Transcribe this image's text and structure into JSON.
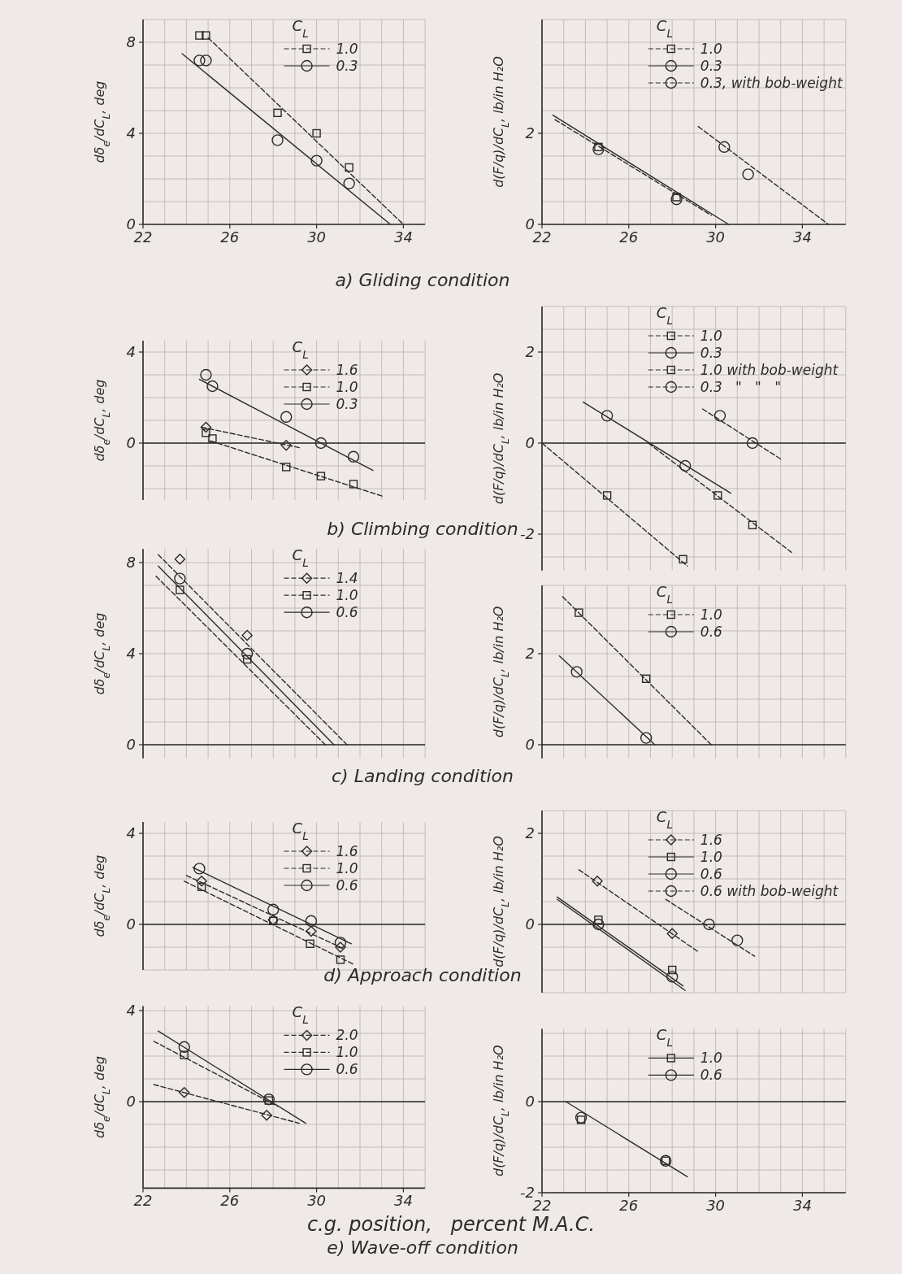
{
  "chart_data": [
    {
      "type": "scatter",
      "title": "a) Gliding condition",
      "ylabel": "dδ$_{e}$/dC$_{L}$, deg",
      "legend_title": "C$_{L}$",
      "legend": "top",
      "grid": true,
      "xlim": [
        22,
        35
      ],
      "ylim": [
        0,
        9
      ],
      "xticks": [
        22,
        {
          "value": 23,
          "label": null
        },
        {
          "value": 24,
          "label": null
        },
        {
          "value": 25,
          "label": null
        },
        26,
        {
          "value": 27,
          "label": null
        },
        {
          "value": 28,
          "label": null
        },
        {
          "value": 29,
          "label": null
        },
        30,
        {
          "value": 31,
          "label": null
        },
        {
          "value": 32,
          "label": null
        },
        {
          "value": 33,
          "label": null
        },
        34,
        {
          "value": 35,
          "label": null
        }
      ],
      "yticks": [
        0,
        {
          "value": 1,
          "label": null
        },
        {
          "value": 2,
          "label": null
        },
        {
          "value": 3,
          "label": null
        },
        4,
        {
          "value": 5,
          "label": null
        },
        {
          "value": 6,
          "label": null
        },
        {
          "value": 7,
          "label": null
        },
        8,
        {
          "value": 9,
          "label": null
        }
      ],
      "series": [
        {
          "name": "1.0",
          "type": "scatter",
          "marker": "square",
          "color": "#2b2b2b",
          "x": [
            24.6,
            24.9,
            28.2,
            30.0,
            31.5
          ],
          "values": [
            8.3,
            8.3,
            4.9,
            4.0,
            2.5
          ]
        },
        {
          "type": "line",
          "line_style": "dashed",
          "color": "#2b2b2b",
          "x": [
            25.0,
            34.0
          ],
          "values": [
            8.2,
            0
          ]
        },
        {
          "name": "0.3",
          "type": "scatter",
          "marker": "circle",
          "color": "#2b2b2b",
          "x": [
            24.6,
            24.9,
            28.2,
            30.0,
            31.5
          ],
          "values": [
            7.2,
            7.2,
            3.7,
            2.8,
            1.8
          ]
        },
        {
          "type": "line",
          "line_style": "solid",
          "color": "#2b2b2b",
          "x": [
            23.8,
            33.4
          ],
          "values": [
            7.5,
            0
          ]
        }
      ]
    },
    {
      "type": "scatter",
      "ylabel": "d(F/q)/dC$_{L}$, lb/in H₂O",
      "legend_title": "C$_{L}$",
      "legend": "top right",
      "grid": true,
      "xlim": [
        22,
        36
      ],
      "ylim": [
        0,
        4.5
      ],
      "xticks": [
        22,
        {
          "value": 23,
          "label": null
        },
        {
          "value": 24,
          "label": null
        },
        {
          "value": 25,
          "label": null
        },
        26,
        {
          "value": 27,
          "label": null
        },
        {
          "value": 28,
          "label": null
        },
        {
          "value": 29,
          "label": null
        },
        30,
        {
          "value": 31,
          "label": null
        },
        {
          "value": 32,
          "label": null
        },
        {
          "value": 33,
          "label": null
        },
        34,
        {
          "value": 35,
          "label": null
        },
        {
          "value": 36,
          "label": null
        }
      ],
      "yticks": [
        0,
        {
          "value": 0.5,
          "label": null
        },
        {
          "value": 1,
          "label": null
        },
        {
          "value": 1.5,
          "label": null
        },
        2,
        {
          "value": 2.5,
          "label": null
        },
        {
          "value": 3,
          "label": null
        },
        {
          "value": 3.5,
          "label": null
        },
        {
          "value": 4,
          "label": null
        },
        {
          "value": 4.5,
          "label": null
        }
      ],
      "series": [
        {
          "name": "1.0",
          "type": "scatter",
          "marker": "square",
          "color": "#2b2b2b",
          "x": [
            24.6,
            28.2
          ],
          "values": [
            1.7,
            0.6
          ]
        },
        {
          "type": "line",
          "line_style": "dashed",
          "color": "#2b2b2b",
          "x": [
            22.6,
            29.8
          ],
          "values": [
            2.3,
            0.2
          ]
        },
        {
          "name": "0.3",
          "type": "scatter",
          "marker": "circle",
          "color": "#2b2b2b",
          "x": [
            24.6,
            28.2
          ],
          "values": [
            1.65,
            0.55
          ]
        },
        {
          "type": "line",
          "line_style": "solid",
          "color": "#2b2b2b",
          "x": [
            22.5,
            30.6
          ],
          "values": [
            2.4,
            0
          ]
        },
        {
          "name": "0.3, with bob-weight",
          "type": "scatter",
          "marker": "circle",
          "color": "#2b2b2b",
          "x": [
            30.4,
            31.5
          ],
          "values": [
            1.7,
            1.1
          ]
        },
        {
          "type": "line",
          "line_style": "dashed",
          "color": "#2b2b2b",
          "x": [
            29.2,
            35.2
          ],
          "values": [
            2.15,
            0
          ]
        }
      ]
    },
    {
      "type": "scatter",
      "title": "b) Climbing condition",
      "ylabel": "dδ$_{e}$/dC$_{L}$, deg",
      "legend_title": "C$_{L}$",
      "legend": "top",
      "grid": true,
      "tick_labels": "y",
      "xlim": [
        22,
        35
      ],
      "ylim": [
        -2.5,
        4.5
      ],
      "xticks": [
        22,
        {
          "value": 23,
          "label": null
        },
        {
          "value": 24,
          "label": null
        },
        {
          "value": 25,
          "label": null
        },
        26,
        {
          "value": 27,
          "label": null
        },
        {
          "value": 28,
          "label": null
        },
        {
          "value": 29,
          "label": null
        },
        30,
        {
          "value": 31,
          "label": null
        },
        {
          "value": 32,
          "label": null
        },
        {
          "value": 33,
          "label": null
        },
        34,
        {
          "value": 35,
          "label": null
        }
      ],
      "yticks": [
        {
          "value": -2,
          "label": null
        },
        {
          "value": -1,
          "label": null
        },
        0,
        {
          "value": 1,
          "label": null
        },
        {
          "value": 2,
          "label": null
        },
        {
          "value": 3,
          "label": null
        },
        4
      ],
      "ref_lines": [
        {
          "axis": "y",
          "value": 0
        }
      ],
      "series": [
        {
          "name": "1.6",
          "type": "scatter",
          "marker": "diamond",
          "color": "#2b2b2b",
          "x": [
            24.9,
            28.6
          ],
          "values": [
            0.7,
            -0.1
          ]
        },
        {
          "type": "line",
          "line_style": "dashed",
          "color": "#2b2b2b",
          "x": [
            24.7,
            29.2
          ],
          "values": [
            0.7,
            -0.2
          ]
        },
        {
          "name": "1.0",
          "type": "scatter",
          "marker": "square",
          "color": "#2b2b2b",
          "x": [
            24.9,
            25.2,
            28.6,
            30.2,
            31.7
          ],
          "values": [
            0.45,
            0.2,
            -1.05,
            -1.45,
            -1.8
          ]
        },
        {
          "type": "line",
          "line_style": "dashed",
          "color": "#2b2b2b",
          "x": [
            25.1,
            33.1
          ],
          "values": [
            0.1,
            -2.35
          ]
        },
        {
          "name": "0.3",
          "type": "scatter",
          "marker": "circle",
          "color": "#2b2b2b",
          "x": [
            24.9,
            25.2,
            28.6,
            30.2,
            31.7
          ],
          "values": [
            3.0,
            2.5,
            1.15,
            0,
            -0.6
          ]
        },
        {
          "type": "line",
          "line_style": "solid",
          "color": "#2b2b2b",
          "x": [
            24.6,
            32.6
          ],
          "values": [
            2.8,
            -1.2
          ]
        }
      ]
    },
    {
      "type": "scatter",
      "ylabel": "d(F/q)/dC$_{L}$, lb/in H₂O",
      "legend_title": "C$_{L}$",
      "legend": "top right",
      "grid": true,
      "tick_labels": "y",
      "xlim": [
        22,
        36
      ],
      "ylim": [
        -2.8,
        3
      ],
      "xticks": [
        22,
        {
          "value": 23,
          "label": null
        },
        {
          "value": 24,
          "label": null
        },
        {
          "value": 25,
          "label": null
        },
        26,
        {
          "value": 27,
          "label": null
        },
        {
          "value": 28,
          "label": null
        },
        {
          "value": 29,
          "label": null
        },
        30,
        {
          "value": 31,
          "label": null
        },
        {
          "value": 32,
          "label": null
        },
        {
          "value": 33,
          "label": null
        },
        34,
        {
          "value": 35,
          "label": null
        },
        {
          "value": 36,
          "label": null
        }
      ],
      "yticks": [
        {
          "value": -2.5,
          "label": null
        },
        -2,
        {
          "value": -1.5,
          "label": null
        },
        {
          "value": -1,
          "label": null
        },
        {
          "value": -0.5,
          "label": null
        },
        0,
        {
          "value": 0.5,
          "label": null
        },
        {
          "value": 1,
          "label": null
        },
        {
          "value": 1.5,
          "label": null
        },
        2,
        {
          "value": 2.5,
          "label": null
        },
        {
          "value": 3,
          "label": null
        }
      ],
      "ref_lines": [
        {
          "axis": "y",
          "value": 0
        }
      ],
      "series": [
        {
          "name": "1.0",
          "type": "scatter",
          "marker": "square",
          "color": "#2b2b2b",
          "x": [
            25.0,
            28.5
          ],
          "values": [
            -1.15,
            -2.55
          ]
        },
        {
          "type": "line",
          "line_style": "dashed",
          "color": "#2b2b2b",
          "x": [
            22.0,
            28.7
          ],
          "values": [
            0,
            -2.7
          ]
        },
        {
          "name": "0.3",
          "type": "scatter",
          "marker": "circle",
          "color": "#2b2b2b",
          "x": [
            25.0,
            28.6
          ],
          "values": [
            0.6,
            -0.5
          ]
        },
        {
          "type": "line",
          "line_style": "solid",
          "color": "#2b2b2b",
          "x": [
            23.9,
            30.7
          ],
          "values": [
            0.9,
            -1.1
          ]
        },
        {
          "name": "1.0 with bob-weight",
          "type": "scatter",
          "marker": "square",
          "color": "#2b2b2b",
          "x": [
            30.1,
            31.7
          ],
          "values": [
            -1.15,
            -1.8
          ]
        },
        {
          "type": "line",
          "line_style": "dashed",
          "color": "#2b2b2b",
          "x": [
            26.9,
            33.5
          ],
          "values": [
            0,
            -2.4
          ]
        },
        {
          "name": "0.3   \"   \"   \"",
          "type": "scatter",
          "marker": "circle",
          "color": "#2b2b2b",
          "x": [
            30.2,
            31.7
          ],
          "values": [
            0.6,
            0
          ]
        },
        {
          "type": "line",
          "line_style": "dashed",
          "color": "#2b2b2b",
          "x": [
            29.4,
            33.0
          ],
          "values": [
            0.75,
            -0.35
          ]
        }
      ]
    },
    {
      "type": "scatter",
      "title": "c) Landing condition",
      "ylabel": "dδ$_{e}$/dC$_{L}$, deg",
      "legend_title": "C$_{L}$",
      "legend": "top",
      "grid": true,
      "tick_labels": "y",
      "xlim": [
        22,
        35
      ],
      "ylim": [
        -0.6,
        8.6
      ],
      "xticks": [
        22,
        {
          "value": 23,
          "label": null
        },
        {
          "value": 24,
          "label": null
        },
        {
          "value": 25,
          "label": null
        },
        26,
        {
          "value": 27,
          "label": null
        },
        {
          "value": 28,
          "label": null
        },
        {
          "value": 29,
          "label": null
        },
        30,
        {
          "value": 31,
          "label": null
        },
        {
          "value": 32,
          "label": null
        },
        {
          "value": 33,
          "label": null
        },
        34,
        {
          "value": 35,
          "label": null
        }
      ],
      "yticks": [
        0,
        {
          "value": 1,
          "label": null
        },
        {
          "value": 2,
          "label": null
        },
        {
          "value": 3,
          "label": null
        },
        4,
        {
          "value": 5,
          "label": null
        },
        {
          "value": 6,
          "label": null
        },
        {
          "value": 7,
          "label": null
        },
        8
      ],
      "ref_lines": [
        {
          "axis": "y",
          "value": 0
        }
      ],
      "series": [
        {
          "name": "1.4",
          "type": "scatter",
          "marker": "diamond",
          "color": "#2b2b2b",
          "x": [
            23.7,
            26.8
          ],
          "values": [
            8.15,
            4.8
          ]
        },
        {
          "type": "line",
          "line_style": "dashed",
          "color": "#2b2b2b",
          "x": [
            22.7,
            31.4
          ],
          "values": [
            8.35,
            0
          ]
        },
        {
          "name": "1.0",
          "type": "scatter",
          "marker": "square",
          "color": "#2b2b2b",
          "x": [
            23.7,
            26.8
          ],
          "values": [
            6.8,
            3.75
          ]
        },
        {
          "type": "line",
          "line_style": "dashed",
          "color": "#2b2b2b",
          "x": [
            22.6,
            30.4
          ],
          "values": [
            7.4,
            0
          ]
        },
        {
          "name": "0.6",
          "type": "scatter",
          "marker": "circle",
          "color": "#2b2b2b",
          "x": [
            23.7,
            26.8
          ],
          "values": [
            7.3,
            4.0
          ]
        },
        {
          "type": "line",
          "line_style": "solid",
          "color": "#2b2b2b",
          "x": [
            22.7,
            30.8
          ],
          "values": [
            7.85,
            0
          ]
        }
      ]
    },
    {
      "type": "scatter",
      "ylabel": "d(F/q)/dC$_{L}$, lb/in H₂O",
      "legend_title": "C$_{L}$",
      "legend": "top right",
      "grid": true,
      "tick_labels": "y",
      "xlim": [
        22,
        36
      ],
      "ylim": [
        -0.3,
        3.5
      ],
      "xticks": [
        22,
        {
          "value": 23,
          "label": null
        },
        {
          "value": 24,
          "label": null
        },
        {
          "value": 25,
          "label": null
        },
        26,
        {
          "value": 27,
          "label": null
        },
        {
          "value": 28,
          "label": null
        },
        {
          "value": 29,
          "label": null
        },
        30,
        {
          "value": 31,
          "label": null
        },
        {
          "value": 32,
          "label": null
        },
        {
          "value": 33,
          "label": null
        },
        34,
        {
          "value": 35,
          "label": null
        },
        {
          "value": 36,
          "label": null
        }
      ],
      "yticks": [
        0,
        {
          "value": 0.5,
          "label": null
        },
        {
          "value": 1,
          "label": null
        },
        {
          "value": 1.5,
          "label": null
        },
        2,
        {
          "value": 2.5,
          "label": null
        },
        {
          "value": 3,
          "label": null
        },
        {
          "value": 3.5,
          "label": null
        }
      ],
      "ref_lines": [
        {
          "axis": "y",
          "value": 0
        }
      ],
      "series": [
        {
          "name": "1.0",
          "type": "scatter",
          "marker": "square",
          "color": "#2b2b2b",
          "x": [
            23.7,
            26.8
          ],
          "values": [
            2.9,
            1.45
          ]
        },
        {
          "type": "line",
          "line_style": "dashed",
          "color": "#2b2b2b",
          "x": [
            22.95,
            29.8
          ],
          "values": [
            3.25,
            0
          ]
        },
        {
          "name": "0.6",
          "type": "scatter",
          "marker": "circle",
          "color": "#2b2b2b",
          "x": [
            23.6,
            26.8
          ],
          "values": [
            1.6,
            0.15
          ]
        },
        {
          "type": "line",
          "line_style": "solid",
          "color": "#2b2b2b",
          "x": [
            22.8,
            27.2
          ],
          "values": [
            1.95,
            0
          ]
        }
      ]
    },
    {
      "type": "scatter",
      "title": "d) Approach condition",
      "ylabel": "dδ$_{e}$/dC$_{L}$, deg",
      "legend_title": "C$_{L}$",
      "legend": "top",
      "grid": true,
      "tick_labels": "y",
      "xlim": [
        22,
        35
      ],
      "ylim": [
        -2,
        4.5
      ],
      "xticks": [
        22,
        {
          "value": 23,
          "label": null
        },
        {
          "value": 24,
          "label": null
        },
        {
          "value": 25,
          "label": null
        },
        26,
        {
          "value": 27,
          "label": null
        },
        {
          "value": 28,
          "label": null
        },
        {
          "value": 29,
          "label": null
        },
        30,
        {
          "value": 31,
          "label": null
        },
        {
          "value": 32,
          "label": null
        },
        {
          "value": 33,
          "label": null
        },
        34,
        {
          "value": 35,
          "label": null
        }
      ],
      "yticks": [
        {
          "value": -2,
          "label": null
        },
        {
          "value": -1,
          "label": null
        },
        0,
        {
          "value": 1,
          "label": null
        },
        {
          "value": 2,
          "label": null
        },
        {
          "value": 3,
          "label": null
        },
        4
      ],
      "ref_lines": [
        {
          "axis": "y",
          "value": 0
        }
      ],
      "series": [
        {
          "name": "1.6",
          "type": "scatter",
          "marker": "diamond",
          "color": "#2b2b2b",
          "x": [
            24.7,
            28.0,
            29.75,
            31.1
          ],
          "values": [
            1.9,
            0.2,
            -0.3,
            -1.0
          ]
        },
        {
          "type": "line",
          "line_style": "dashed",
          "color": "#2b2b2b",
          "x": [
            24.0,
            31.2
          ],
          "values": [
            2.15,
            -1.05
          ]
        },
        {
          "name": "1.0",
          "type": "scatter",
          "marker": "square",
          "color": "#2b2b2b",
          "x": [
            24.7,
            28.0,
            29.7,
            31.1
          ],
          "values": [
            1.65,
            0.15,
            -0.85,
            -1.55
          ]
        },
        {
          "type": "line",
          "line_style": "dashed",
          "color": "#2b2b2b",
          "x": [
            23.9,
            31.7
          ],
          "values": [
            1.9,
            -1.75
          ]
        },
        {
          "name": "0.6",
          "type": "scatter",
          "marker": "circle",
          "color": "#2b2b2b",
          "x": [
            24.6,
            28.0,
            29.75,
            31.1
          ],
          "values": [
            2.45,
            0.65,
            0.15,
            -0.8
          ]
        },
        {
          "type": "line",
          "line_style": "solid",
          "color": "#2b2b2b",
          "x": [
            24.3,
            31.6
          ],
          "values": [
            2.5,
            -0.85
          ]
        }
      ]
    },
    {
      "type": "scatter",
      "ylabel": "d(F/q)/dC$_{L}$, lb/in H₂O",
      "legend_title": "C$_{L}$",
      "legend": "top right",
      "grid": true,
      "tick_labels": "y",
      "xlim": [
        22,
        36
      ],
      "ylim": [
        -1.5,
        2.5
      ],
      "xticks": [
        22,
        {
          "value": 23,
          "label": null
        },
        {
          "value": 24,
          "label": null
        },
        {
          "value": 25,
          "label": null
        },
        26,
        {
          "value": 27,
          "label": null
        },
        {
          "value": 28,
          "label": null
        },
        {
          "value": 29,
          "label": null
        },
        30,
        {
          "value": 31,
          "label": null
        },
        {
          "value": 32,
          "label": null
        },
        {
          "value": 33,
          "label": null
        },
        34,
        {
          "value": 35,
          "label": null
        },
        {
          "value": 36,
          "label": null
        }
      ],
      "yticks": [
        {
          "value": -1.5,
          "label": null
        },
        {
          "value": -1,
          "label": null
        },
        {
          "value": -0.5,
          "label": null
        },
        0,
        {
          "value": 0.5,
          "label": null
        },
        {
          "value": 1,
          "label": null
        },
        {
          "value": 1.5,
          "label": null
        },
        2,
        {
          "value": 2.5,
          "label": null
        }
      ],
      "ref_lines": [
        {
          "axis": "y",
          "value": 0
        }
      ],
      "series": [
        {
          "name": "1.6",
          "type": "scatter",
          "marker": "diamond",
          "color": "#2b2b2b",
          "x": [
            24.55,
            28.0
          ],
          "values": [
            0.95,
            -0.2
          ]
        },
        {
          "type": "line",
          "line_style": "dashed",
          "color": "#2b2b2b",
          "x": [
            23.7,
            29.2
          ],
          "values": [
            1.2,
            -0.6
          ]
        },
        {
          "name": "1.0",
          "type": "scatter",
          "marker": "square",
          "color": "#2b2b2b",
          "x": [
            24.6,
            28.0
          ],
          "values": [
            0.1,
            -1.0
          ]
        },
        {
          "type": "line",
          "line_style": "solid",
          "color": "#2b2b2b",
          "x": [
            22.7,
            28.5
          ],
          "values": [
            0.6,
            -1.35
          ]
        },
        {
          "name": "0.6",
          "type": "scatter",
          "marker": "circle",
          "color": "#2b2b2b",
          "x": [
            24.6,
            28.0
          ],
          "values": [
            0,
            -1.15
          ]
        },
        {
          "type": "line",
          "line_style": "solid",
          "color": "#2b2b2b",
          "x": [
            22.7,
            28.6
          ],
          "values": [
            0.55,
            -1.45
          ]
        },
        {
          "name": "0.6 with bob-weight",
          "type": "scatter",
          "marker": "circle",
          "color": "#2b2b2b",
          "x": [
            29.7,
            31.0
          ],
          "values": [
            0,
            -0.35
          ]
        },
        {
          "type": "line",
          "line_style": "dashed",
          "color": "#2b2b2b",
          "x": [
            27.7,
            31.8
          ],
          "values": [
            0.55,
            -0.7
          ]
        }
      ]
    },
    {
      "type": "scatter",
      "title": "e) Wave-off condition",
      "xlabel": "c.g. position,   percent M.A.C.",
      "ylabel": "dδ$_{e}$/dC$_{L}$, deg",
      "legend_title": "C$_{L}$",
      "legend": "top",
      "grid": true,
      "xlim": [
        22,
        35
      ],
      "ylim": [
        -3.8,
        4.2
      ],
      "xticks": [
        22,
        {
          "value": 23,
          "label": null
        },
        {
          "value": 24,
          "label": null
        },
        {
          "value": 25,
          "label": null
        },
        26,
        {
          "value": 27,
          "label": null
        },
        {
          "value": 28,
          "label": null
        },
        {
          "value": 29,
          "label": null
        },
        30,
        {
          "value": 31,
          "label": null
        },
        {
          "value": 32,
          "label": null
        },
        {
          "value": 33,
          "label": null
        },
        34,
        {
          "value": 35,
          "label": null
        }
      ],
      "yticks": [
        {
          "value": -3,
          "label": null
        },
        {
          "value": -2,
          "label": null
        },
        {
          "value": -1,
          "label": null
        },
        0,
        {
          "value": 1,
          "label": null
        },
        {
          "value": 2,
          "label": null
        },
        {
          "value": 3,
          "label": null
        },
        4
      ],
      "ref_lines": [
        {
          "axis": "y",
          "value": 0
        }
      ],
      "series": [
        {
          "name": "2.0",
          "type": "scatter",
          "marker": "diamond",
          "color": "#2b2b2b",
          "x": [
            23.9,
            27.7
          ],
          "values": [
            0.4,
            -0.6
          ]
        },
        {
          "type": "line",
          "line_style": "dashed",
          "color": "#2b2b2b",
          "x": [
            22.5,
            29.2
          ],
          "values": [
            0.75,
            -0.95
          ]
        },
        {
          "name": "1.0",
          "type": "scatter",
          "marker": "square",
          "color": "#2b2b2b",
          "x": [
            23.9,
            27.8
          ],
          "values": [
            2.05,
            0.05
          ]
        },
        {
          "type": "line",
          "line_style": "dashed",
          "color": "#2b2b2b",
          "x": [
            22.5,
            28.2
          ],
          "values": [
            2.65,
            -0.2
          ]
        },
        {
          "name": "0.6",
          "type": "scatter",
          "marker": "circle",
          "color": "#2b2b2b",
          "x": [
            23.9,
            27.8
          ],
          "values": [
            2.4,
            0.1
          ]
        },
        {
          "type": "line",
          "line_style": "solid",
          "color": "#2b2b2b",
          "x": [
            22.7,
            29.5
          ],
          "values": [
            3.1,
            -0.95
          ]
        }
      ]
    },
    {
      "type": "scatter",
      "ylabel": "d(F/q)/dC$_{L}$, lb/in H₂O",
      "legend_title": "C$_{L}$",
      "legend": "top right",
      "grid": true,
      "xlim": [
        22,
        36
      ],
      "ylim": [
        -2,
        1.6
      ],
      "xticks": [
        22,
        {
          "value": 23,
          "label": null
        },
        {
          "value": 24,
          "label": null
        },
        {
          "value": 25,
          "label": null
        },
        26,
        {
          "value": 27,
          "label": null
        },
        {
          "value": 28,
          "label": null
        },
        {
          "value": 29,
          "label": null
        },
        30,
        {
          "value": 31,
          "label": null
        },
        {
          "value": 32,
          "label": null
        },
        {
          "value": 33,
          "label": null
        },
        34,
        {
          "value": 35,
          "label": null
        },
        {
          "value": 36,
          "label": null
        }
      ],
      "yticks": [
        -2,
        {
          "value": -1.5,
          "label": null
        },
        {
          "value": -1,
          "label": null
        },
        {
          "value": -0.5,
          "label": null
        },
        0,
        {
          "value": 0.5,
          "label": null
        },
        {
          "value": 1,
          "label": null
        },
        {
          "value": 1.5,
          "label": null
        }
      ],
      "ref_lines": [
        {
          "axis": "y",
          "value": 0
        }
      ],
      "series": [
        {
          "name": "1.0",
          "type": "scatter",
          "marker": "square",
          "color": "#2b2b2b",
          "x": [
            23.8,
            27.7
          ],
          "values": [
            -0.4,
            -1.3
          ]
        },
        {
          "name": "0.6",
          "type": "scatter",
          "marker": "circle",
          "color": "#2b2b2b",
          "x": [
            23.8,
            27.7
          ],
          "values": [
            -0.35,
            -1.3
          ]
        },
        {
          "type": "line",
          "line_style": "solid",
          "color": "#2b2b2b",
          "x": [
            23.1,
            28.7
          ],
          "values": [
            0,
            -1.65
          ]
        }
      ]
    }
  ]
}
